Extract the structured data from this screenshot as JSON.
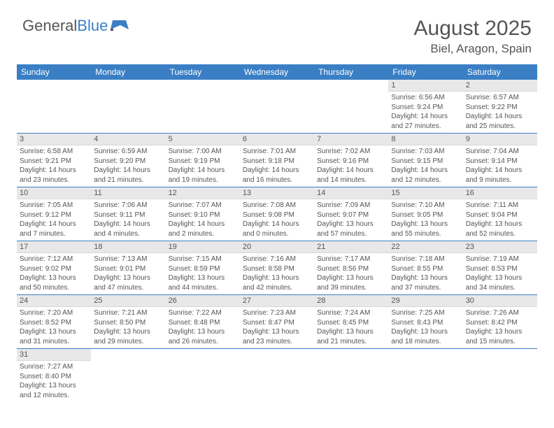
{
  "logo": {
    "part1": "General",
    "part2": "Blue"
  },
  "header": {
    "month_title": "August 2025",
    "location": "Biel, Aragon, Spain"
  },
  "colors": {
    "header_bg": "#3a7fc4",
    "header_text": "#ffffff",
    "daynum_bg": "#e8e8e8",
    "text": "#555555",
    "row_border": "#3a7fc4",
    "page_bg": "#ffffff"
  },
  "typography": {
    "month_title_fontsize": 30,
    "location_fontsize": 17,
    "weekday_fontsize": 12,
    "daynum_fontsize": 11,
    "cell_fontsize": 10
  },
  "weekdays": [
    "Sunday",
    "Monday",
    "Tuesday",
    "Wednesday",
    "Thursday",
    "Friday",
    "Saturday"
  ],
  "weeks": [
    [
      null,
      null,
      null,
      null,
      null,
      {
        "n": "1",
        "sr": "6:56 AM",
        "ss": "9:24 PM",
        "dl": "14 hours and 27 minutes."
      },
      {
        "n": "2",
        "sr": "6:57 AM",
        "ss": "9:22 PM",
        "dl": "14 hours and 25 minutes."
      }
    ],
    [
      {
        "n": "3",
        "sr": "6:58 AM",
        "ss": "9:21 PM",
        "dl": "14 hours and 23 minutes."
      },
      {
        "n": "4",
        "sr": "6:59 AM",
        "ss": "9:20 PM",
        "dl": "14 hours and 21 minutes."
      },
      {
        "n": "5",
        "sr": "7:00 AM",
        "ss": "9:19 PM",
        "dl": "14 hours and 19 minutes."
      },
      {
        "n": "6",
        "sr": "7:01 AM",
        "ss": "9:18 PM",
        "dl": "14 hours and 16 minutes."
      },
      {
        "n": "7",
        "sr": "7:02 AM",
        "ss": "9:16 PM",
        "dl": "14 hours and 14 minutes."
      },
      {
        "n": "8",
        "sr": "7:03 AM",
        "ss": "9:15 PM",
        "dl": "14 hours and 12 minutes."
      },
      {
        "n": "9",
        "sr": "7:04 AM",
        "ss": "9:14 PM",
        "dl": "14 hours and 9 minutes."
      }
    ],
    [
      {
        "n": "10",
        "sr": "7:05 AM",
        "ss": "9:12 PM",
        "dl": "14 hours and 7 minutes."
      },
      {
        "n": "11",
        "sr": "7:06 AM",
        "ss": "9:11 PM",
        "dl": "14 hours and 4 minutes."
      },
      {
        "n": "12",
        "sr": "7:07 AM",
        "ss": "9:10 PM",
        "dl": "14 hours and 2 minutes."
      },
      {
        "n": "13",
        "sr": "7:08 AM",
        "ss": "9:08 PM",
        "dl": "14 hours and 0 minutes."
      },
      {
        "n": "14",
        "sr": "7:09 AM",
        "ss": "9:07 PM",
        "dl": "13 hours and 57 minutes."
      },
      {
        "n": "15",
        "sr": "7:10 AM",
        "ss": "9:05 PM",
        "dl": "13 hours and 55 minutes."
      },
      {
        "n": "16",
        "sr": "7:11 AM",
        "ss": "9:04 PM",
        "dl": "13 hours and 52 minutes."
      }
    ],
    [
      {
        "n": "17",
        "sr": "7:12 AM",
        "ss": "9:02 PM",
        "dl": "13 hours and 50 minutes."
      },
      {
        "n": "18",
        "sr": "7:13 AM",
        "ss": "9:01 PM",
        "dl": "13 hours and 47 minutes."
      },
      {
        "n": "19",
        "sr": "7:15 AM",
        "ss": "8:59 PM",
        "dl": "13 hours and 44 minutes."
      },
      {
        "n": "20",
        "sr": "7:16 AM",
        "ss": "8:58 PM",
        "dl": "13 hours and 42 minutes."
      },
      {
        "n": "21",
        "sr": "7:17 AM",
        "ss": "8:56 PM",
        "dl": "13 hours and 39 minutes."
      },
      {
        "n": "22",
        "sr": "7:18 AM",
        "ss": "8:55 PM",
        "dl": "13 hours and 37 minutes."
      },
      {
        "n": "23",
        "sr": "7:19 AM",
        "ss": "8:53 PM",
        "dl": "13 hours and 34 minutes."
      }
    ],
    [
      {
        "n": "24",
        "sr": "7:20 AM",
        "ss": "8:52 PM",
        "dl": "13 hours and 31 minutes."
      },
      {
        "n": "25",
        "sr": "7:21 AM",
        "ss": "8:50 PM",
        "dl": "13 hours and 29 minutes."
      },
      {
        "n": "26",
        "sr": "7:22 AM",
        "ss": "8:48 PM",
        "dl": "13 hours and 26 minutes."
      },
      {
        "n": "27",
        "sr": "7:23 AM",
        "ss": "8:47 PM",
        "dl": "13 hours and 23 minutes."
      },
      {
        "n": "28",
        "sr": "7:24 AM",
        "ss": "8:45 PM",
        "dl": "13 hours and 21 minutes."
      },
      {
        "n": "29",
        "sr": "7:25 AM",
        "ss": "8:43 PM",
        "dl": "13 hours and 18 minutes."
      },
      {
        "n": "30",
        "sr": "7:26 AM",
        "ss": "8:42 PM",
        "dl": "13 hours and 15 minutes."
      }
    ],
    [
      {
        "n": "31",
        "sr": "7:27 AM",
        "ss": "8:40 PM",
        "dl": "13 hours and 12 minutes."
      },
      null,
      null,
      null,
      null,
      null,
      null
    ]
  ],
  "labels": {
    "sunrise": "Sunrise:",
    "sunset": "Sunset:",
    "daylight": "Daylight:"
  }
}
